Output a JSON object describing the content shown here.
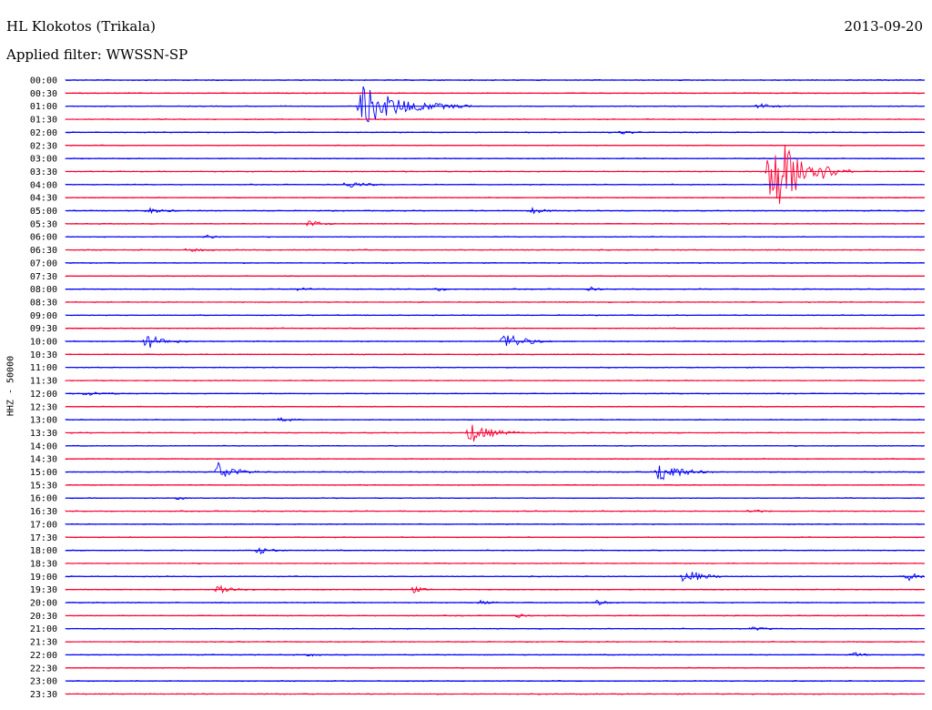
{
  "header": {
    "station": "HL Klokotos (Trikala)",
    "date": "2013-09-20",
    "filter": "Applied filter: WWSSN-SP"
  },
  "chart_data": {
    "type": "line",
    "ylabel": "HHZ - 50000",
    "rows": [
      {
        "label": "00:00",
        "color": "#0000ff"
      },
      {
        "label": "00:30",
        "color": "#ff0033"
      },
      {
        "label": "01:00",
        "color": "#0000ff"
      },
      {
        "label": "01:30",
        "color": "#ff0033"
      },
      {
        "label": "02:00",
        "color": "#0000ff"
      },
      {
        "label": "02:30",
        "color": "#ff0033"
      },
      {
        "label": "03:00",
        "color": "#0000ff"
      },
      {
        "label": "03:30",
        "color": "#ff0033"
      },
      {
        "label": "04:00",
        "color": "#0000ff"
      },
      {
        "label": "04:30",
        "color": "#ff0033"
      },
      {
        "label": "05:00",
        "color": "#0000ff"
      },
      {
        "label": "05:30",
        "color": "#ff0033"
      },
      {
        "label": "06:00",
        "color": "#0000ff"
      },
      {
        "label": "06:30",
        "color": "#ff0033"
      },
      {
        "label": "07:00",
        "color": "#0000ff"
      },
      {
        "label": "07:30",
        "color": "#ff0033"
      },
      {
        "label": "08:00",
        "color": "#0000ff"
      },
      {
        "label": "08:30",
        "color": "#ff0033"
      },
      {
        "label": "09:00",
        "color": "#0000ff"
      },
      {
        "label": "09:30",
        "color": "#ff0033"
      },
      {
        "label": "10:00",
        "color": "#0000ff"
      },
      {
        "label": "10:30",
        "color": "#ff0033"
      },
      {
        "label": "11:00",
        "color": "#0000ff"
      },
      {
        "label": "11:30",
        "color": "#ff0033"
      },
      {
        "label": "12:00",
        "color": "#0000ff"
      },
      {
        "label": "12:30",
        "color": "#ff0033"
      },
      {
        "label": "13:00",
        "color": "#0000ff"
      },
      {
        "label": "13:30",
        "color": "#ff0033"
      },
      {
        "label": "14:00",
        "color": "#0000ff"
      },
      {
        "label": "14:30",
        "color": "#ff0033"
      },
      {
        "label": "15:00",
        "color": "#0000ff"
      },
      {
        "label": "15:30",
        "color": "#ff0033"
      },
      {
        "label": "16:00",
        "color": "#0000ff"
      },
      {
        "label": "16:30",
        "color": "#ff0033"
      },
      {
        "label": "17:00",
        "color": "#0000ff"
      },
      {
        "label": "17:30",
        "color": "#ff0033"
      },
      {
        "label": "18:00",
        "color": "#0000ff"
      },
      {
        "label": "18:30",
        "color": "#ff0033"
      },
      {
        "label": "19:00",
        "color": "#0000ff"
      },
      {
        "label": "19:30",
        "color": "#ff0033"
      },
      {
        "label": "20:00",
        "color": "#0000ff"
      },
      {
        "label": "20:30",
        "color": "#ff0033"
      },
      {
        "label": "21:00",
        "color": "#0000ff"
      },
      {
        "label": "21:30",
        "color": "#ff0033"
      },
      {
        "label": "22:00",
        "color": "#0000ff"
      },
      {
        "label": "22:30",
        "color": "#ff0033"
      },
      {
        "label": "23:00",
        "color": "#0000ff"
      },
      {
        "label": "23:30",
        "color": "#ff0033"
      }
    ],
    "events": [
      {
        "row": 2,
        "minute": 10.2,
        "amplitude": 3.2,
        "duration": 4.0
      },
      {
        "row": 2,
        "minute": 24.1,
        "amplitude": 0.4,
        "duration": 1.2
      },
      {
        "row": 4,
        "minute": 19.3,
        "amplitude": 0.3,
        "duration": 1.0
      },
      {
        "row": 7,
        "minute": 24.5,
        "amplitude": 7.5,
        "duration": 3.0
      },
      {
        "row": 8,
        "minute": 9.7,
        "amplitude": 0.6,
        "duration": 1.5
      },
      {
        "row": 10,
        "minute": 2.8,
        "amplitude": 0.4,
        "duration": 1.4
      },
      {
        "row": 10,
        "minute": 16.2,
        "amplitude": 0.5,
        "duration": 1.0
      },
      {
        "row": 11,
        "minute": 8.4,
        "amplitude": 0.7,
        "duration": 1.0
      },
      {
        "row": 12,
        "minute": 4.7,
        "amplitude": 0.4,
        "duration": 1.0
      },
      {
        "row": 13,
        "minute": 4.2,
        "amplitude": 0.4,
        "duration": 1.0
      },
      {
        "row": 16,
        "minute": 8.0,
        "amplitude": 0.3,
        "duration": 0.8
      },
      {
        "row": 16,
        "minute": 12.9,
        "amplitude": 0.3,
        "duration": 0.8
      },
      {
        "row": 16,
        "minute": 18.2,
        "amplitude": 0.3,
        "duration": 0.8
      },
      {
        "row": 20,
        "minute": 2.7,
        "amplitude": 1.2,
        "duration": 1.6
      },
      {
        "row": 20,
        "minute": 15.2,
        "amplitude": 1.5,
        "duration": 1.8
      },
      {
        "row": 24,
        "minute": 0.6,
        "amplitude": 0.3,
        "duration": 1.8
      },
      {
        "row": 26,
        "minute": 7.4,
        "amplitude": 0.3,
        "duration": 1.0
      },
      {
        "row": 27,
        "minute": 14.0,
        "amplitude": 1.6,
        "duration": 2.0
      },
      {
        "row": 30,
        "minute": 5.2,
        "amplitude": 1.6,
        "duration": 1.6
      },
      {
        "row": 30,
        "minute": 20.6,
        "amplitude": 1.8,
        "duration": 2.0
      },
      {
        "row": 32,
        "minute": 3.8,
        "amplitude": 0.3,
        "duration": 0.6
      },
      {
        "row": 33,
        "minute": 23.8,
        "amplitude": 0.3,
        "duration": 1.0
      },
      {
        "row": 36,
        "minute": 6.6,
        "amplitude": 0.6,
        "duration": 1.2
      },
      {
        "row": 38,
        "minute": 21.5,
        "amplitude": 1.2,
        "duration": 1.6
      },
      {
        "row": 38,
        "minute": 29.3,
        "amplitude": 0.6,
        "duration": 1.2
      },
      {
        "row": 39,
        "minute": 5.2,
        "amplitude": 0.9,
        "duration": 1.4
      },
      {
        "row": 39,
        "minute": 12.0,
        "amplitude": 0.5,
        "duration": 1.0
      },
      {
        "row": 40,
        "minute": 14.4,
        "amplitude": 0.3,
        "duration": 0.8
      },
      {
        "row": 40,
        "minute": 18.4,
        "amplitude": 0.4,
        "duration": 1.0
      },
      {
        "row": 41,
        "minute": 15.7,
        "amplitude": 0.3,
        "duration": 0.6
      },
      {
        "row": 42,
        "minute": 23.9,
        "amplitude": 0.3,
        "duration": 1.0
      },
      {
        "row": 44,
        "minute": 8.4,
        "amplitude": 0.2,
        "duration": 0.6
      },
      {
        "row": 44,
        "minute": 27.4,
        "amplitude": 0.4,
        "duration": 0.8
      }
    ]
  }
}
